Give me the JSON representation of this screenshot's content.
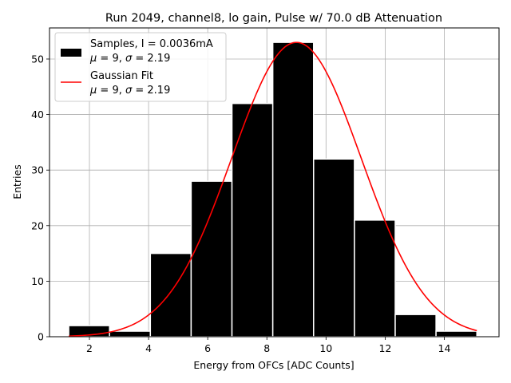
{
  "chart_data": {
    "type": "bar",
    "title": "Run 2049, channel8, lo gain, Pulse w/ 70.0 dB Attenuation",
    "xlabel": "Energy from OFCs [ADC Counts]",
    "ylabel": "Entries",
    "xlim": [
      0.65,
      15.85
    ],
    "ylim": [
      0,
      55.6
    ],
    "xticks": [
      2,
      4,
      6,
      8,
      10,
      12,
      14
    ],
    "yticks": [
      0,
      10,
      20,
      30,
      40,
      50
    ],
    "grid": true,
    "bin_edges": [
      1.3,
      2.68,
      4.06,
      5.44,
      6.82,
      8.2,
      9.58,
      10.96,
      12.34,
      13.72,
      15.1
    ],
    "counts": [
      2,
      1,
      15,
      28,
      42,
      53,
      32,
      21,
      4,
      1
    ],
    "fit": {
      "mu": 9,
      "sigma": 2.19,
      "amplitude": 53,
      "x_range": [
        1.3,
        15.1
      ]
    },
    "legend": {
      "position": "upper-left",
      "entries": [
        {
          "series": "Samples",
          "line1": "Samples, I = 0.0036mA",
          "line2_label": "μ = 9, σ = 2.19",
          "mu_sym": "μ",
          "mu_val": " = 9, ",
          "sigma_sym": "σ",
          "sigma_val": " = 2.19",
          "color": "#000000"
        },
        {
          "series": "Gaussian Fit",
          "line1": "Gaussian Fit",
          "line2_label": "μ = 9, σ = 2.19",
          "mu_sym": "μ",
          "mu_val": " = 9, ",
          "sigma_sym": "σ",
          "sigma_val": " = 2.19",
          "color": "#ff0000"
        }
      ]
    },
    "colors": {
      "bars": "#000000",
      "bar_edge": "#ffffff",
      "fit": "#ff0000",
      "grid": "#b0b0b0"
    }
  }
}
